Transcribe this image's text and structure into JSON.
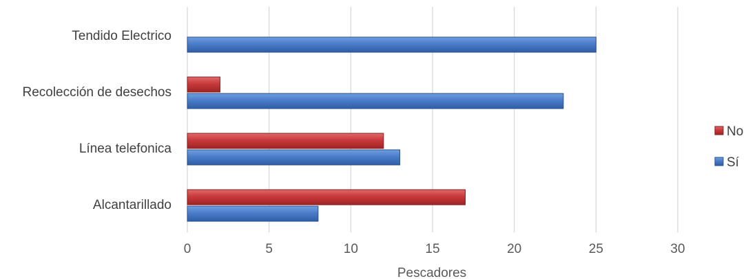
{
  "chart_data": {
    "type": "bar",
    "orientation": "horizontal",
    "categories": [
      "Alcantarillado",
      "Línea telefonica",
      "Recolección de desechos",
      "Tendido Electrico"
    ],
    "series": [
      {
        "name": "Sí",
        "values": [
          8,
          13,
          23,
          25
        ],
        "color": "#4a7cc9"
      },
      {
        "name": "No",
        "values": [
          17,
          12,
          2,
          0
        ],
        "color": "#c8393a"
      }
    ],
    "xlabel": "Pescadores",
    "xlim": [
      0,
      30
    ],
    "xticks": [
      0,
      5,
      10,
      15,
      20,
      25,
      30
    ],
    "grid": "vertical",
    "legend_position": "right",
    "legend_order": [
      "No",
      "Sí"
    ]
  }
}
